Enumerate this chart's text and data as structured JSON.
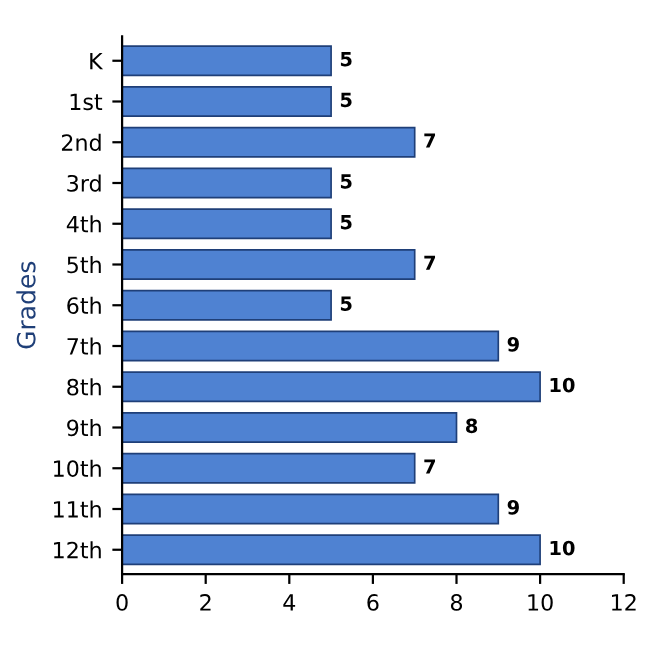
{
  "chart_data": {
    "type": "bar",
    "orientation": "horizontal",
    "ylabel": "Grades",
    "categories": [
      "K",
      "1st",
      "2nd",
      "3rd",
      "4th",
      "5th",
      "6th",
      "7th",
      "8th",
      "9th",
      "10th",
      "11th",
      "12th"
    ],
    "values": [
      5,
      5,
      7,
      5,
      5,
      7,
      5,
      9,
      10,
      8,
      7,
      9,
      10
    ],
    "color": "#4f82d2",
    "xlim": [
      0,
      12
    ],
    "xticks": [
      0,
      2,
      4,
      6,
      8,
      10,
      12
    ],
    "data_labels": true,
    "grid": false
  }
}
